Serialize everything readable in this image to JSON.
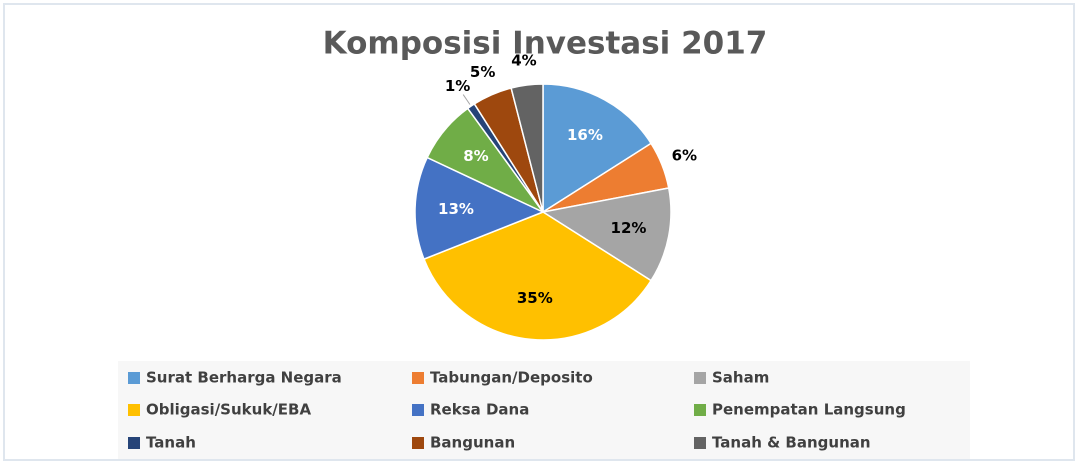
{
  "chart_data": {
    "type": "pie",
    "title": "Komposisi Investasi  2017",
    "categories": [
      "Surat Berharga Negara",
      "Tabungan/Deposito",
      "Saham",
      "Obligasi/Sukuk/EBA",
      "Reksa Dana",
      "Penempatan Langsung",
      "Tanah",
      "Bangunan",
      "Tanah & Bangunan"
    ],
    "values": [
      16,
      6,
      12,
      35,
      13,
      8,
      1,
      5,
      4
    ],
    "value_labels": [
      "16%",
      "6%",
      "12%",
      "35%",
      "13%",
      "8%",
      "1%",
      "5%",
      "4%"
    ],
    "colors": [
      "#5b9bd5",
      "#ed7d31",
      "#a5a5a5",
      "#ffc000",
      "#4472c4",
      "#70ad47",
      "#264478",
      "#9e480e",
      "#636363"
    ],
    "legend": "bottom"
  }
}
